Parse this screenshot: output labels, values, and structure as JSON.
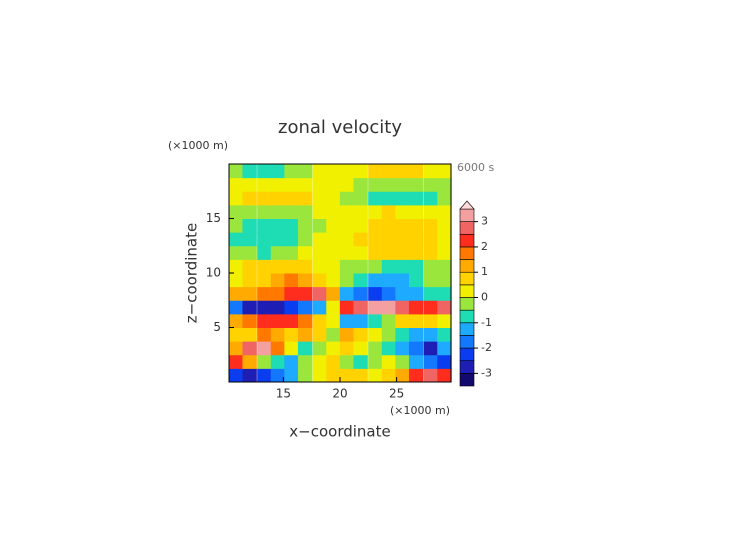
{
  "chart_data": {
    "type": "contour",
    "title": "zonal velocity",
    "time_label": "6000 s",
    "x_label": "x−coordinate",
    "y_label": "z−coordinate",
    "x_unit": "(×1000 m)",
    "y_unit": "(×1000 m)",
    "xlim": [
      10.2,
      29.8
    ],
    "ylim": [
      0,
      20
    ],
    "xticks": [
      15,
      20,
      25
    ],
    "yticks": [
      5,
      10,
      15
    ],
    "x": [
      10.8,
      12.0,
      13.3,
      14.5,
      15.7,
      16.9,
      18.2,
      19.4,
      20.6,
      21.8,
      23.1,
      24.3,
      25.5,
      26.7,
      28.0,
      29.2
    ],
    "y": [
      0.625,
      1.875,
      3.125,
      4.375,
      5.625,
      6.875,
      8.125,
      9.375,
      10.625,
      11.875,
      13.125,
      14.375,
      15.625,
      16.875,
      18.125,
      19.375
    ],
    "z": [
      [
        -2.5,
        -2.8,
        -2.5,
        -2,
        -1.2,
        -0.5,
        0.3,
        0.8,
        0.8,
        0.5,
        0.3,
        0.5,
        1.2,
        2,
        2.5,
        2.2
      ],
      [
        2.2,
        1.2,
        -0.5,
        -1,
        -1.5,
        -0.5,
        0.3,
        0.5,
        -0.5,
        -0.8,
        -0.3,
        0.3,
        -0.5,
        -1.2,
        -2,
        -2.5
      ],
      [
        1.2,
        2.5,
        3,
        1.5,
        0.2,
        -0.8,
        -0.3,
        0.3,
        0.5,
        0.2,
        -0.5,
        -1,
        -1.5,
        -2,
        -2.8,
        -1.5
      ],
      [
        0.5,
        0.8,
        1.5,
        1.2,
        0.5,
        1.2,
        0.8,
        -0.5,
        1,
        0.5,
        0.2,
        -0.5,
        -1,
        -1.5,
        -1.2,
        -0.8
      ],
      [
        1.2,
        1.5,
        2,
        2.2,
        2,
        1.5,
        0.8,
        0.2,
        -1.2,
        -1.5,
        -1,
        -0.5,
        0.5,
        0.8,
        0.5,
        0.3
      ],
      [
        -2,
        -3,
        -3,
        -2.8,
        -2.5,
        -2,
        -1.2,
        0.2,
        2,
        2.8,
        3.2,
        3,
        2.5,
        2.2,
        2,
        2.5
      ],
      [
        1,
        1.2,
        1.5,
        1.8,
        2,
        2.2,
        2.5,
        1,
        -1.5,
        -2,
        -2.2,
        -2,
        -1.5,
        -1.2,
        -1,
        -0.8
      ],
      [
        0.4,
        0.6,
        0.8,
        1.2,
        1.5,
        1.2,
        0.8,
        0.3,
        -0.3,
        -0.8,
        -1.2,
        -1.5,
        -1.2,
        -0.8,
        -0.5,
        -0.3
      ],
      [
        0.3,
        0.5,
        0.8,
        0.8,
        0.6,
        0.5,
        0.3,
        0.1,
        -0.1,
        -0.3,
        -0.5,
        -0.6,
        -0.8,
        -0.8,
        -0.5,
        -0.3
      ],
      [
        -0.2,
        -0.5,
        -0.6,
        -0.5,
        -0.3,
        0,
        0.2,
        0.1,
        0.1,
        0.3,
        0.6,
        0.8,
        0.8,
        0.6,
        0.5,
        0.2
      ],
      [
        -0.6,
        -0.9,
        -0.9,
        -0.8,
        -0.6,
        -0.3,
        0,
        0,
        0.2,
        0.5,
        0.8,
        0.9,
        0.9,
        0.8,
        0.6,
        0.3
      ],
      [
        -0.5,
        -0.8,
        -0.9,
        -0.9,
        -0.7,
        -0.4,
        -0.1,
        0,
        0.1,
        0.4,
        0.7,
        0.9,
        0.9,
        0.8,
        0.5,
        0.3
      ],
      [
        -0.2,
        -0.4,
        -0.5,
        -0.4,
        -0.3,
        -0.1,
        0.1,
        0,
        0,
        0.2,
        0.4,
        0.5,
        0.4,
        0.3,
        0.2,
        0.1
      ],
      [
        0.3,
        0.6,
        0.8,
        0.9,
        0.8,
        0.5,
        0.3,
        0.1,
        -0.1,
        -0.3,
        -0.6,
        -0.9,
        -1,
        -0.9,
        -0.6,
        -0.3
      ],
      [
        0.2,
        0.3,
        0.4,
        0.4,
        0.3,
        0.2,
        0.1,
        0,
        0,
        -0.2,
        -0.3,
        -0.4,
        -0.4,
        -0.3,
        -0.2,
        -0.1
      ],
      [
        -0.4,
        -0.7,
        -0.8,
        -0.7,
        -0.5,
        -0.2,
        0,
        0,
        0.2,
        0.4,
        0.6,
        0.8,
        0.8,
        0.6,
        0.4,
        0.2
      ]
    ],
    "levels": [
      -3.5,
      -3,
      -2.5,
      -2,
      -1.5,
      -1,
      -0.5,
      0,
      0.5,
      1,
      1.5,
      2,
      2.5,
      3,
      3.5
    ],
    "colors": [
      "#140a6e",
      "#1e1eb4",
      "#0a3cf0",
      "#1478ff",
      "#1eaaff",
      "#1edcb4",
      "#9be63c",
      "#f0f000",
      "#ffd200",
      "#ffaa00",
      "#ff7800",
      "#ff2d1e",
      "#f06464",
      "#f5a0a0",
      "#ffd8d8"
    ],
    "colorbar_ticks": [
      -3,
      -2,
      -1,
      0,
      1,
      2,
      3
    ]
  }
}
